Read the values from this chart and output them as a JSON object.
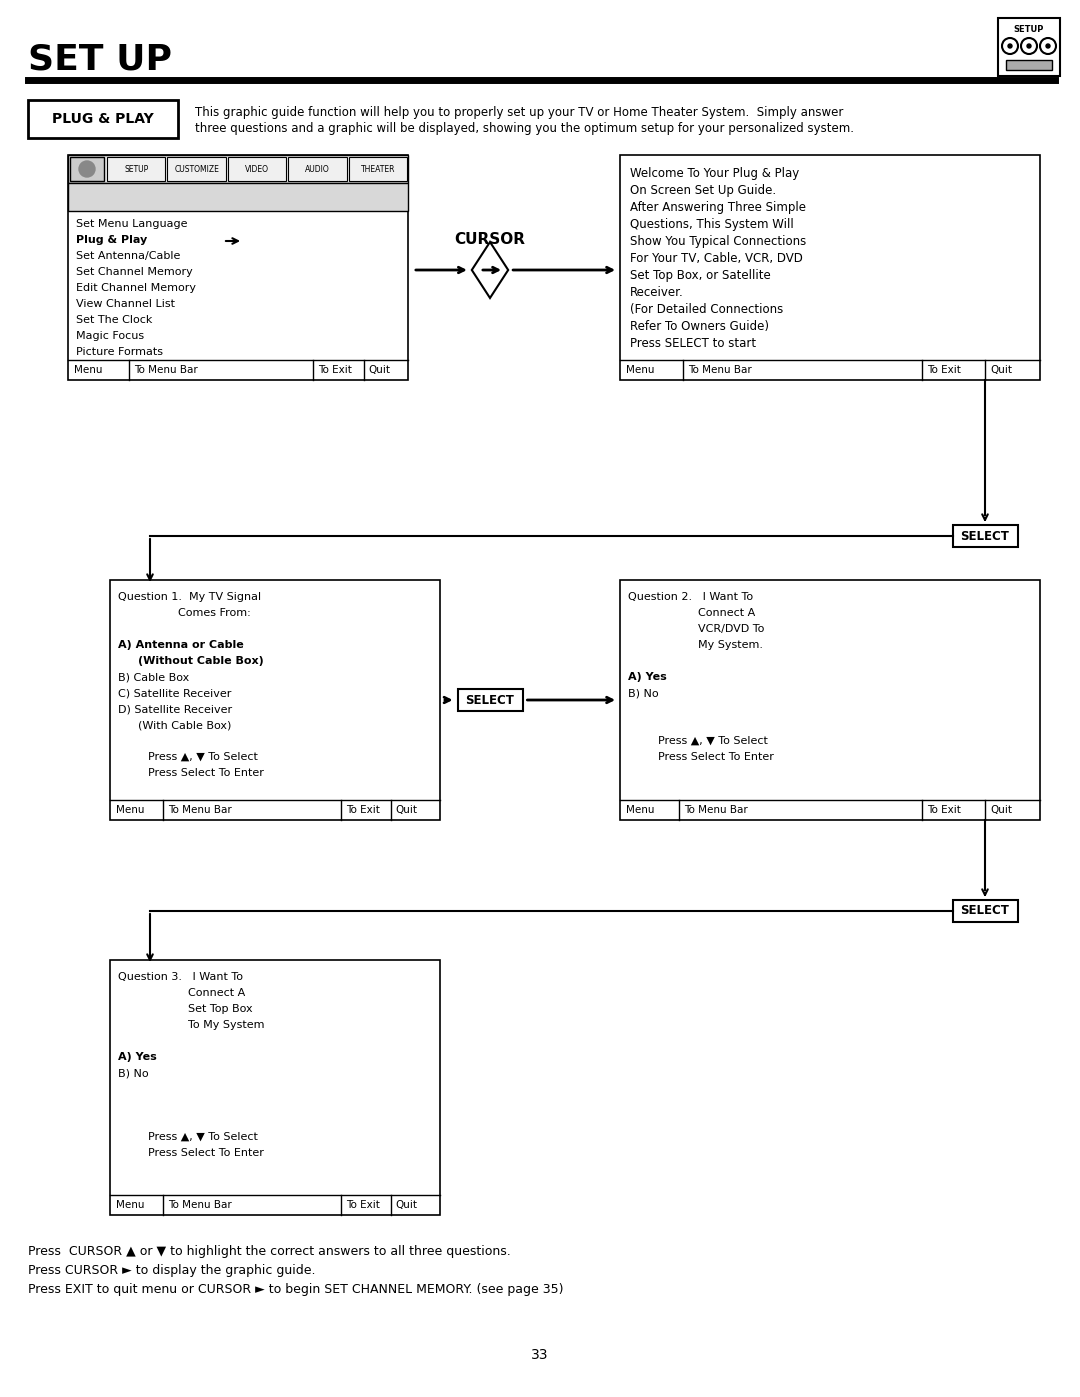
{
  "title": "SET UP",
  "page_number": "33",
  "plug_play_label": "PLUG & PLAY",
  "plug_play_text_line1": "This graphic guide function will help you to properly set up your TV or Home Theater System.  Simply answer",
  "plug_play_text_line2": "three questions and a graphic will be displayed, showing you the optimum setup for your personalized system.",
  "menu_bar_items": [
    "Menu",
    "To Menu Bar",
    "To Exit",
    "Quit"
  ],
  "tab_labels": [
    "SETUP",
    "CUSTOMIZE",
    "VIDEO",
    "AUDIO",
    "THEATER"
  ],
  "box1_menu_content": [
    "Set Menu Language",
    "Plug & Play",
    "Set Antenna/Cable",
    "Set Channel Memory",
    "Edit Channel Memory",
    "View Channel List",
    "Set The Clock",
    "Magic Focus",
    "Picture Formats"
  ],
  "box2_content": [
    "Welcome To Your Plug & Play",
    "On Screen Set Up Guide.",
    "After Answering Three Simple",
    "Questions, This System Will",
    "Show You Typical Connections",
    "For Your TV, Cable, VCR, DVD",
    "Set Top Box, or Satellite",
    "Receiver.",
    "(For Detailed Connections",
    "Refer To Owners Guide)",
    "Press SELECT to start"
  ],
  "cursor_label": "CURSOR",
  "select_label": "SELECT",
  "q1_lines": [
    {
      "text": "Question 1.  My TV Signal",
      "bold": false,
      "indent": 0
    },
    {
      "text": "Comes From:",
      "bold": false,
      "indent": 60
    },
    {
      "text": "",
      "bold": false,
      "indent": 0
    },
    {
      "text": "A) Antenna or Cable",
      "bold": true,
      "indent": 0
    },
    {
      "text": "(Without Cable Box)",
      "bold": true,
      "indent": 20
    },
    {
      "text": "B) Cable Box",
      "bold": false,
      "indent": 0
    },
    {
      "text": "C) Satellite Receiver",
      "bold": false,
      "indent": 0
    },
    {
      "text": "D) Satellite Receiver",
      "bold": false,
      "indent": 0
    },
    {
      "text": "(With Cable Box)",
      "bold": false,
      "indent": 20
    },
    {
      "text": "",
      "bold": false,
      "indent": 0
    },
    {
      "text": "Press ▲, ▼ To Select",
      "bold": false,
      "indent": 30
    },
    {
      "text": "Press Select To Enter",
      "bold": false,
      "indent": 30
    }
  ],
  "q2_lines": [
    {
      "text": "Question 2.   I Want To",
      "bold": false,
      "indent": 0
    },
    {
      "text": "Connect A",
      "bold": false,
      "indent": 70
    },
    {
      "text": "VCR/DVD To",
      "bold": false,
      "indent": 70
    },
    {
      "text": "My System.",
      "bold": false,
      "indent": 70
    },
    {
      "text": "",
      "bold": false,
      "indent": 0
    },
    {
      "text": "A) Yes",
      "bold": true,
      "indent": 0
    },
    {
      "text": "B) No",
      "bold": false,
      "indent": 0
    },
    {
      "text": "",
      "bold": false,
      "indent": 0
    },
    {
      "text": "",
      "bold": false,
      "indent": 0
    },
    {
      "text": "Press ▲, ▼ To Select",
      "bold": false,
      "indent": 30
    },
    {
      "text": "Press Select To Enter",
      "bold": false,
      "indent": 30
    }
  ],
  "q3_lines": [
    {
      "text": "Question 3.   I Want To",
      "bold": false,
      "indent": 0
    },
    {
      "text": "Connect A",
      "bold": false,
      "indent": 70
    },
    {
      "text": "Set Top Box",
      "bold": false,
      "indent": 70
    },
    {
      "text": "To My System",
      "bold": false,
      "indent": 70
    },
    {
      "text": "",
      "bold": false,
      "indent": 0
    },
    {
      "text": "A) Yes",
      "bold": true,
      "indent": 0
    },
    {
      "text": "B) No",
      "bold": false,
      "indent": 0
    },
    {
      "text": "",
      "bold": false,
      "indent": 0
    },
    {
      "text": "",
      "bold": false,
      "indent": 0
    },
    {
      "text": "",
      "bold": false,
      "indent": 0
    },
    {
      "text": "Press ▲, ▼ To Select",
      "bold": false,
      "indent": 30
    },
    {
      "text": "Press Select To Enter",
      "bold": false,
      "indent": 30
    }
  ],
  "bottom_text": [
    "Press  CURSOR ▲ or ▼ to highlight the correct answers to all three questions.",
    "Press CURSOR ► to display the graphic guide.",
    "Press EXIT to quit menu or CURSOR ► to begin SET CHANNEL MEMORY. (see page 35)"
  ],
  "bg_color": "#ffffff",
  "text_color": "#000000"
}
